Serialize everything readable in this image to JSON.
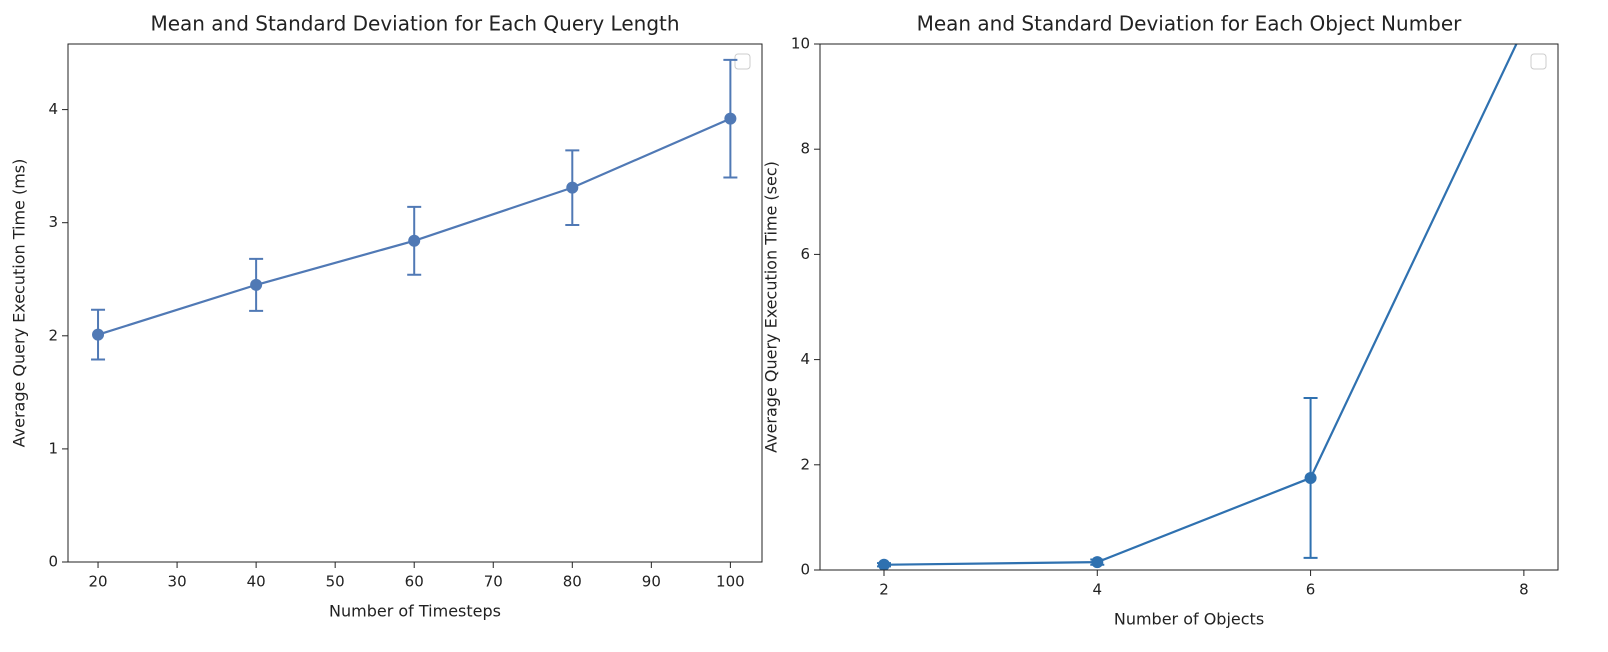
{
  "chart_data": [
    {
      "type": "line",
      "title": "Mean and Standard Deviation for Each Query Length",
      "xlabel": "Number of Timesteps",
      "ylabel": "Average Query Execution Time (ms)",
      "x": [
        20,
        40,
        60,
        80,
        100
      ],
      "series": [
        {
          "color": "#5079b5",
          "values": [
            2.01,
            2.45,
            2.84,
            3.31,
            3.92
          ],
          "errors": [
            0.22,
            0.23,
            0.3,
            0.33,
            0.52
          ]
        }
      ],
      "xlim": [
        16.2,
        104
      ],
      "ylim": [
        0,
        4.58
      ],
      "xticks": [
        20,
        30,
        40,
        50,
        60,
        70,
        80,
        90,
        100
      ],
      "yticks": [
        0,
        1,
        2,
        3,
        4
      ]
    },
    {
      "type": "line",
      "title": "Mean and Standard Deviation for Each Object Number",
      "xlabel": "Number of Objects",
      "ylabel": "Average Query Execution Time (sec)",
      "x": [
        2,
        4,
        6,
        8
      ],
      "series": [
        {
          "color": "#2f71b0",
          "values": [
            0.1,
            0.15,
            1.75,
            10.3
          ],
          "errors": [
            0.03,
            0.05,
            1.52,
            null
          ]
        }
      ],
      "xlim": [
        1.4,
        8.32
      ],
      "ylim": [
        0,
        10
      ],
      "xticks": [
        2,
        4,
        6,
        8
      ],
      "yticks": [
        0,
        2,
        4,
        6,
        8,
        10
      ]
    }
  ]
}
